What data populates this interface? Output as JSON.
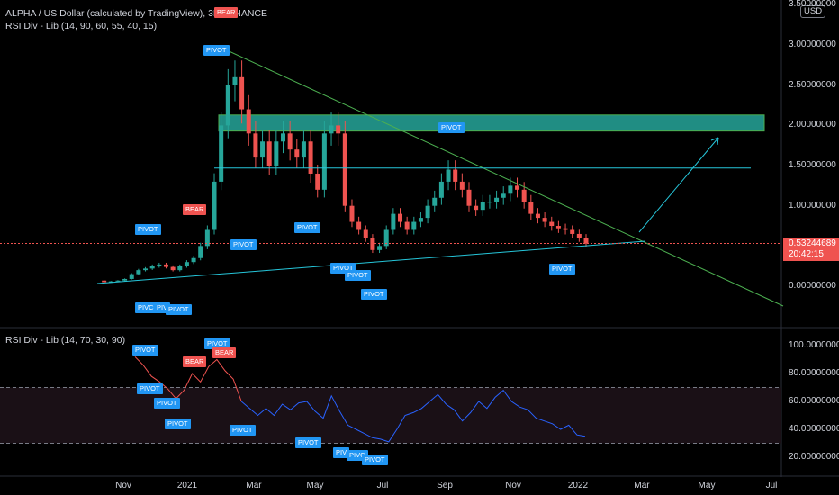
{
  "header": {
    "title": "ALPHA / US Dollar (calculated by TradingView), 3D, BINANCE",
    "indicator": "RSI Div - Lib (14, 90, 60, 55, 40, 15)"
  },
  "rsi_header": {
    "indicator": "RSI Div - Lib (14, 70, 30, 90)"
  },
  "currency_button": "USD",
  "price_axis": [
    "3.50000000",
    "3.00000000",
    "2.50000000",
    "2.00000000",
    "1.50000000",
    "1.00000000",
    "0.50000000",
    "0.00000000"
  ],
  "rsi_axis": [
    "100.00000000",
    "80.00000000",
    "60.00000000",
    "40.00000000",
    "20.00000000"
  ],
  "last_price": {
    "value": "0.53244689",
    "countdown": "20:42:15"
  },
  "time_axis": [
    "Nov",
    "2021",
    "Mar",
    "May",
    "Jul",
    "Sep",
    "Nov",
    "2022",
    "Mar",
    "May",
    "Jul"
  ],
  "labels": {
    "pivot": "PIVOT",
    "pivot_short1": "PIVC",
    "pivot_short2": "PIV",
    "pivot_short3": "PIVC",
    "bear": "BEAR"
  },
  "colors": {
    "up": "#26a69a",
    "down": "#ef5350",
    "rsi_line": "#2962ff",
    "trend_green": "#4caf50",
    "trend_cyan": "#26c6da",
    "zone": "#26a69a"
  },
  "price_series": [
    0.07,
    0.05,
    0.06,
    0.07,
    0.09,
    0.15,
    0.2,
    0.22,
    0.25,
    0.27,
    0.24,
    0.2,
    0.25,
    0.3,
    0.35,
    0.5,
    0.7,
    1.3,
    2.0,
    2.5,
    2.6,
    2.2,
    1.9,
    1.6,
    1.8,
    1.5,
    1.8,
    1.9,
    1.7,
    1.6,
    1.8,
    1.4,
    1.2,
    1.9,
    2.0,
    1.9,
    1.0,
    0.8,
    0.7,
    0.6,
    0.45,
    0.5,
    0.7,
    0.9,
    0.8,
    0.7,
    0.8,
    0.85,
    1.0,
    1.1,
    1.3,
    1.45,
    1.3,
    1.2,
    1.0,
    0.95,
    1.05,
    1.05,
    1.1,
    1.15,
    1.25,
    1.2,
    1.05,
    0.9,
    0.85,
    0.8,
    0.75,
    0.72,
    0.7,
    0.65,
    0.6,
    0.53
  ],
  "rsi_series": [
    92,
    86,
    78,
    74,
    69,
    62,
    68,
    80,
    74,
    85,
    90,
    82,
    76,
    60,
    55,
    50,
    55,
    50,
    58,
    54,
    59,
    60,
    53,
    48,
    64,
    53,
    43,
    40,
    37,
    34,
    33,
    31,
    40,
    50,
    52,
    55,
    60,
    65,
    58,
    54,
    46,
    52,
    60,
    55,
    63,
    68,
    60,
    56,
    54,
    48,
    46,
    44,
    40,
    43,
    36,
    35
  ]
}
